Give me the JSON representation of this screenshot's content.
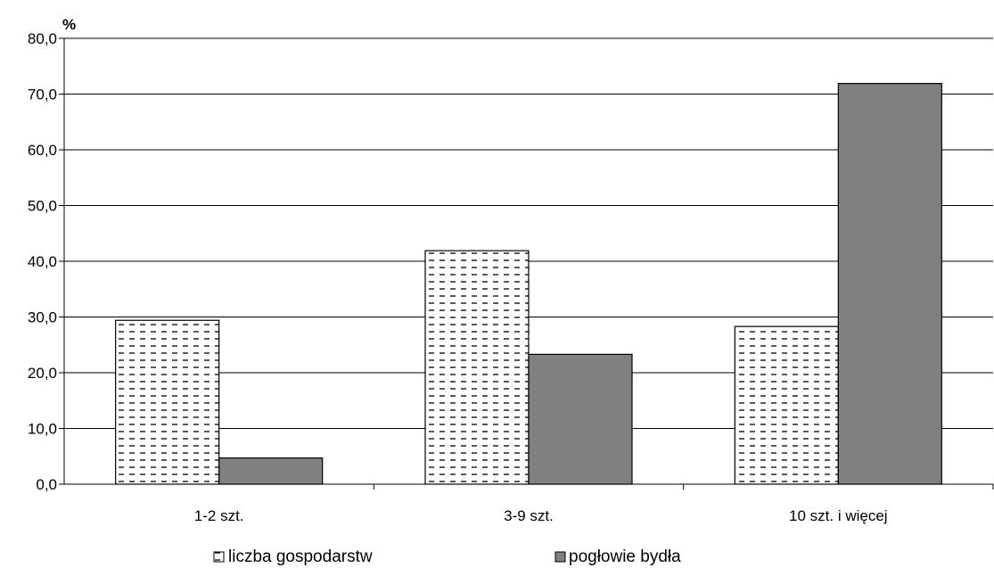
{
  "chart_data": {
    "type": "bar",
    "unit_label": "%",
    "categories": [
      "1-2 szt.",
      "3-9 szt.",
      "10 szt. i więcej"
    ],
    "series": [
      {
        "name": "liczba gospodarstw",
        "values": [
          29.4,
          41.9,
          28.3
        ],
        "fill": "#ffffff",
        "pattern": "dashes",
        "pattern_color": "#000000"
      },
      {
        "name": "pogłowie bydła",
        "values": [
          4.7,
          23.3,
          71.9
        ],
        "fill": "#808080"
      }
    ],
    "y_ticks": [
      "0,0",
      "10,0",
      "20,0",
      "30,0",
      "40,0",
      "50,0",
      "60,0",
      "70,0",
      "80,0"
    ],
    "ylim": [
      0,
      80
    ],
    "grid": true,
    "legend_position": "bottom"
  }
}
